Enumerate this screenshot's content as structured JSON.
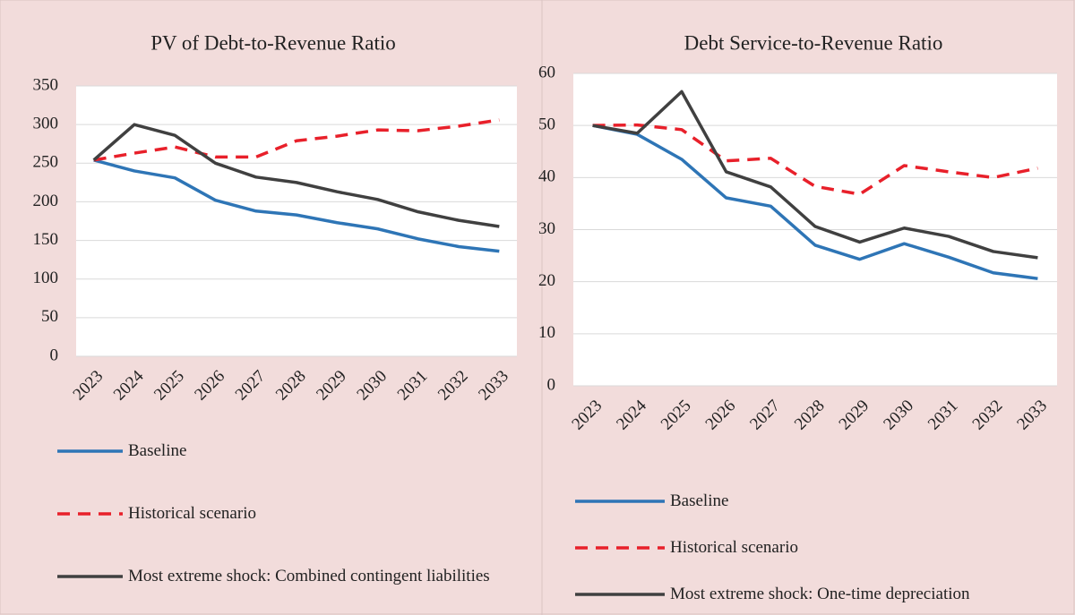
{
  "chart_data": [
    {
      "type": "line",
      "title": "PV of Debt-to-Revenue Ratio",
      "categories": [
        "2023",
        "2024",
        "2025",
        "2026",
        "2027",
        "2028",
        "2029",
        "2030",
        "2031",
        "2032",
        "2033"
      ],
      "series": [
        {
          "name": "Baseline",
          "color": "#2e75b6",
          "dash": false,
          "values": [
            254,
            240,
            231,
            202,
            188,
            183,
            173,
            165,
            152,
            142,
            136
          ]
        },
        {
          "name": "Historical scenario",
          "color": "#e8202a",
          "dash": true,
          "values": [
            254,
            263,
            271,
            258,
            258,
            279,
            285,
            293,
            292,
            298,
            306
          ]
        },
        {
          "name": "Most extreme shock: Combined contingent liabilities",
          "color": "#404040",
          "dash": false,
          "values": [
            254,
            300,
            286,
            250,
            232,
            225,
            213,
            203,
            187,
            176,
            168
          ]
        }
      ],
      "ylim": [
        0,
        350
      ],
      "yticks": [
        0,
        50,
        100,
        150,
        200,
        250,
        300,
        350
      ],
      "grid": true,
      "legend": "bottom"
    },
    {
      "type": "line",
      "title": "Debt Service-to-Revenue Ratio",
      "categories": [
        "2023",
        "2024",
        "2025",
        "2026",
        "2027",
        "2028",
        "2029",
        "2030",
        "2031",
        "2032",
        "2033"
      ],
      "series": [
        {
          "name": "Baseline",
          "color": "#2e75b6",
          "dash": false,
          "values": [
            50,
            48.3,
            43.5,
            36.1,
            34.5,
            27,
            24.3,
            27.3,
            24.7,
            21.7,
            20.6
          ]
        },
        {
          "name": "Historical scenario",
          "color": "#e8202a",
          "dash": true,
          "values": [
            50,
            50.1,
            49.2,
            43.2,
            43.7,
            38.3,
            36.8,
            42.3,
            41.1,
            40,
            41.8
          ]
        },
        {
          "name": "Most extreme shock: One-time depreciation",
          "color": "#404040",
          "dash": false,
          "values": [
            50,
            48.5,
            56.5,
            41.1,
            38.2,
            30.6,
            27.6,
            30.3,
            28.7,
            25.8,
            24.6
          ]
        }
      ],
      "ylim": [
        0,
        60
      ],
      "yticks": [
        0,
        10,
        20,
        30,
        40,
        50,
        60
      ],
      "grid": true,
      "legend": "bottom"
    }
  ]
}
